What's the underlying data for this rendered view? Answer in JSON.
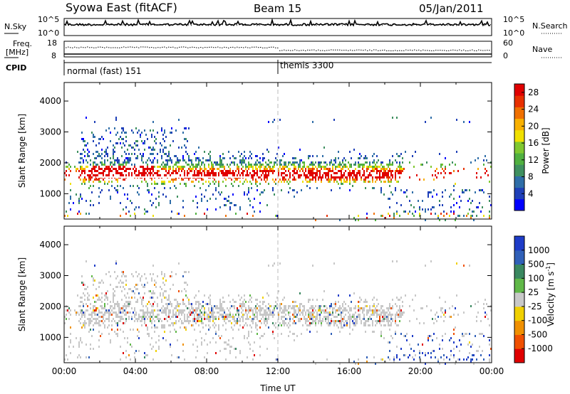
{
  "header": {
    "station": "Syowa East (fitACF)",
    "beam": "Beam 15",
    "date": "05/Jan/2011"
  },
  "aux_panels": {
    "nsky_label": "N.Sky",
    "nsearch_label": "N.Search",
    "nsky_ticks": [
      "10^5",
      "10^0"
    ],
    "nsearch_ticks": [
      "10^5",
      "10^0"
    ],
    "freq_label_line1": "Freq.",
    "freq_label_line2": "[MHz]",
    "freq_ticks": [
      "18",
      "8"
    ],
    "nave_label": "Nave",
    "nave_ticks": [
      "60",
      "0"
    ],
    "cpid_label": "CPID",
    "cpid_segments": [
      {
        "label": "normal (fast) 151",
        "start_hour": 0
      },
      {
        "label": "themis 3300",
        "start_hour": 12
      }
    ]
  },
  "chart_data": [
    {
      "type": "heatmap",
      "title": "",
      "xlabel": "",
      "ylabel": "Slant Range [km]",
      "x_range_hours": [
        0,
        24
      ],
      "y_range_km": [
        180,
        4600
      ],
      "y_ticks": [
        1000,
        2000,
        3000,
        4000
      ],
      "colorbar_label": "Power [dB]",
      "colorbar_ticks": [
        4,
        8,
        12,
        16,
        20,
        24,
        28
      ],
      "colorbar_range": [
        0,
        30
      ],
      "colors": [
        "#0000ff",
        "#1f40b8",
        "#2f6ea8",
        "#3f9060",
        "#50b040",
        "#80c830",
        "#f0e000",
        "#f8b000",
        "#f07000",
        "#e83000",
        "#e00000"
      ],
      "dashed_line_hour": 12
    },
    {
      "type": "heatmap",
      "title": "",
      "xlabel": "Time UT",
      "ylabel": "Slant Range [km]",
      "x_range_hours": [
        0,
        24
      ],
      "x_tick_labels": [
        "00:00",
        "04:00",
        "08:00",
        "12:00",
        "16:00",
        "20:00",
        "00:00"
      ],
      "y_range_km": [
        180,
        4600
      ],
      "y_ticks": [
        1000,
        2000,
        3000,
        4000
      ],
      "colorbar_label": "Velocity [m s",
      "colorbar_label_sup": "-1",
      "colorbar_label_end": "]",
      "colorbar_ticks": [
        "1000",
        "500",
        "100",
        "25",
        "-25",
        "-100",
        "-500",
        "-1000"
      ],
      "colors": [
        "#1e3cc8",
        "#3060b8",
        "#3a8860",
        "#60b848",
        "#c8c8c8",
        "#f0d000",
        "#f09000",
        "#f05000",
        "#e00000"
      ],
      "dashed_line_hour": 12
    }
  ]
}
